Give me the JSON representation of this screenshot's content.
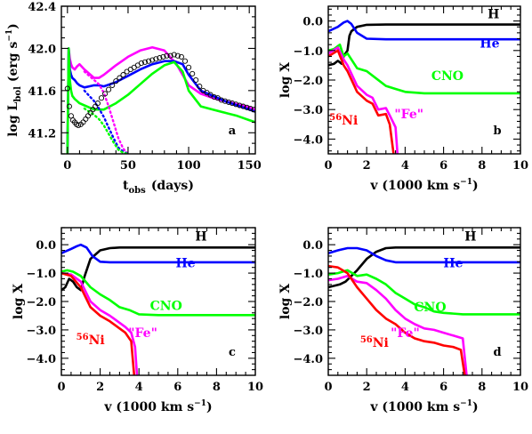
{
  "chart_data": [
    {
      "id": "a",
      "type": "line",
      "panel_label": "a",
      "xlabel": "t_obs (days)",
      "xlabel_main": "t",
      "xlabel_sub": "obs",
      "xlabel_rest": "(days)",
      "ylabel": "log L_bol (erg s⁻¹)",
      "ylabel_main": "log L",
      "ylabel_sub": "bol",
      "ylabel_rest": "(erg s",
      "ylabel_sup": "−1",
      "ylabel_close": ")",
      "xlim": [
        -5,
        155
      ],
      "ylim": [
        41.0,
        42.4
      ],
      "xticks": [
        "0",
        "50",
        "100",
        "150"
      ],
      "yticks": [
        "41.2",
        "41.6",
        "42.0",
        "42.4"
      ],
      "series": [
        {
          "color": "#ff00ff",
          "style": "solid",
          "x": [
            0,
            1,
            2,
            3,
            4,
            6,
            8,
            10,
            14,
            18,
            22,
            26,
            30,
            40,
            50,
            60,
            70,
            80,
            90,
            100,
            110,
            120,
            130,
            140,
            150,
            155
          ],
          "y": [
            41.0,
            42.0,
            41.9,
            41.85,
            41.82,
            41.8,
            41.83,
            41.85,
            41.8,
            41.76,
            41.72,
            41.72,
            41.75,
            41.84,
            41.92,
            41.98,
            42.01,
            41.98,
            41.85,
            41.65,
            41.57,
            41.53,
            41.5,
            41.47,
            41.44,
            41.42
          ]
        },
        {
          "color": "#0000ff",
          "style": "solid",
          "x": [
            0,
            1,
            2,
            3,
            4,
            6,
            8,
            10,
            14,
            18,
            22,
            26,
            30,
            40,
            50,
            60,
            70,
            80,
            88,
            95,
            100,
            110,
            120,
            130,
            140,
            150,
            155
          ],
          "y": [
            41.0,
            42.0,
            41.8,
            41.75,
            41.72,
            41.7,
            41.67,
            41.65,
            41.63,
            41.64,
            41.65,
            41.65,
            41.64,
            41.68,
            41.74,
            41.8,
            41.85,
            41.88,
            41.88,
            41.85,
            41.75,
            41.6,
            41.55,
            41.5,
            41.46,
            41.42,
            41.4
          ]
        },
        {
          "color": "#00ff00",
          "style": "solid",
          "x": [
            0,
            1,
            2,
            3,
            4,
            6,
            8,
            10,
            14,
            18,
            22,
            26,
            30,
            40,
            50,
            60,
            70,
            80,
            88,
            95,
            100,
            110,
            120,
            130,
            140,
            150,
            155
          ],
          "y": [
            41.0,
            42.0,
            41.7,
            41.6,
            41.55,
            41.52,
            41.5,
            41.48,
            41.46,
            41.44,
            41.42,
            41.42,
            41.42,
            41.48,
            41.56,
            41.66,
            41.76,
            41.84,
            41.87,
            41.78,
            41.6,
            41.45,
            41.42,
            41.39,
            41.36,
            41.32,
            41.3
          ]
        },
        {
          "color": "#ff00ff",
          "style": "dotted",
          "x": [
            14,
            18,
            22,
            26,
            30,
            34,
            38,
            42,
            46,
            50
          ],
          "y": [
            41.78,
            41.74,
            41.7,
            41.66,
            41.58,
            41.45,
            41.3,
            41.15,
            41.05,
            41.0
          ]
        },
        {
          "color": "#0000ff",
          "style": "dotted",
          "x": [
            14,
            18,
            22,
            26,
            30,
            34,
            38,
            42,
            46,
            50
          ],
          "y": [
            41.6,
            41.55,
            41.5,
            41.43,
            41.35,
            41.25,
            41.15,
            41.06,
            41.02,
            41.0
          ]
        },
        {
          "color": "#00ff00",
          "style": "dotted",
          "x": [
            14,
            18,
            22,
            26,
            30,
            34,
            38,
            42,
            46,
            50
          ],
          "y": [
            41.43,
            41.4,
            41.37,
            41.33,
            41.27,
            41.19,
            41.11,
            41.04,
            41.01,
            41.0
          ]
        }
      ],
      "observed_points": {
        "marker": "open-circle",
        "x": [
          0,
          1.5,
          3,
          4.5,
          6,
          7.5,
          9,
          11,
          13,
          15,
          17,
          19,
          21,
          23,
          25,
          28,
          31,
          34,
          37,
          40,
          43,
          46,
          49,
          52,
          55,
          58,
          61,
          64,
          67,
          70,
          73,
          76,
          79,
          82,
          85,
          88,
          91,
          94,
          97,
          100,
          103,
          106,
          109,
          112,
          115,
          118,
          121,
          124,
          127,
          130,
          133,
          136,
          139,
          142,
          145,
          148,
          151,
          154
        ],
        "y": [
          41.62,
          41.45,
          41.36,
          41.32,
          41.3,
          41.28,
          41.27,
          41.28,
          41.3,
          41.33,
          41.36,
          41.39,
          41.42,
          41.45,
          41.48,
          41.53,
          41.57,
          41.61,
          41.65,
          41.69,
          41.72,
          41.75,
          41.78,
          41.8,
          41.82,
          41.84,
          41.86,
          41.87,
          41.88,
          41.89,
          41.9,
          41.91,
          41.92,
          41.93,
          41.93,
          41.94,
          41.93,
          41.92,
          41.88,
          41.82,
          41.76,
          41.7,
          41.64,
          41.6,
          41.58,
          41.56,
          41.54,
          41.53,
          41.51,
          41.5,
          41.49,
          41.48,
          41.47,
          41.46,
          41.45,
          41.44,
          41.43,
          41.42
        ]
      }
    },
    {
      "id": "b",
      "type": "line",
      "panel_label": "b",
      "xlabel": "v (1000 km s⁻¹)",
      "xlabel_main": "v (1000 km s",
      "xlabel_sup": "−1",
      "xlabel_close": ")",
      "ylabel": "log X",
      "xlim": [
        0,
        10
      ],
      "ylim": [
        -4.5,
        0.5
      ],
      "xticks": [
        "0",
        "2",
        "4",
        "6",
        "8",
        "10"
      ],
      "yticks": [
        "0.0",
        "−1.0",
        "−2.0",
        "−3.0",
        "−4.0"
      ],
      "series": [
        {
          "name": "H",
          "color": "#000000",
          "x": [
            0,
            0.3,
            0.5,
            0.7,
            0.8,
            0.9,
            1.0,
            1.1,
            1.2,
            1.5,
            2.0,
            3.0,
            5.0,
            10.0
          ],
          "y": [
            -1.5,
            -1.45,
            -1.35,
            -1.45,
            -1.2,
            -1.1,
            -1.0,
            -0.5,
            -0.35,
            -0.2,
            -0.13,
            -0.12,
            -0.12,
            -0.12
          ]
        },
        {
          "name": "He",
          "color": "#0000ff",
          "x": [
            0,
            0.5,
            0.8,
            1.0,
            1.2,
            1.5,
            2.0,
            3.0,
            5.0,
            10.0
          ],
          "y": [
            -0.35,
            -0.2,
            -0.05,
            0.0,
            -0.1,
            -0.4,
            -0.6,
            -0.62,
            -0.62,
            -0.62
          ]
        },
        {
          "name": "CNO",
          "color": "#00ff00",
          "x": [
            0,
            0.3,
            0.6,
            0.8,
            1.0,
            1.5,
            2.0,
            2.5,
            3.0,
            3.5,
            4.0,
            5.0,
            10.0
          ],
          "y": [
            -1.0,
            -0.95,
            -0.8,
            -1.2,
            -1.1,
            -1.6,
            -1.7,
            -1.95,
            -2.2,
            -2.3,
            -2.4,
            -2.45,
            -2.45
          ]
        },
        {
          "name": "\"Fe\"",
          "color": "#ff00ff",
          "x": [
            0,
            0.5,
            0.8,
            1.0,
            1.5,
            2.0,
            2.3,
            2.6,
            3.0,
            3.2,
            3.5,
            3.6
          ],
          "y": [
            -1.1,
            -0.9,
            -1.3,
            -1.5,
            -2.2,
            -2.5,
            -2.6,
            -3.0,
            -2.95,
            -3.2,
            -3.6,
            -4.5
          ]
        },
        {
          "name": "⁵⁶Ni",
          "color": "#ff0000",
          "x": [
            0,
            0.5,
            0.8,
            1.0,
            1.5,
            2.0,
            2.3,
            2.6,
            3.0,
            3.2,
            3.4
          ],
          "y": [
            -1.2,
            -1.0,
            -1.5,
            -1.7,
            -2.4,
            -2.7,
            -2.8,
            -3.2,
            -3.15,
            -3.5,
            -4.5
          ]
        }
      ],
      "series_labels": [
        {
          "text": "H",
          "color": "#000000",
          "at": [
            8.6,
            0.1
          ]
        },
        {
          "text": "He",
          "color": "#0000ff",
          "at": [
            8.4,
            -0.9
          ]
        },
        {
          "text": "CNO",
          "color": "#00ff00",
          "at": [
            6.2,
            -2.0
          ]
        },
        {
          "text": "\"Fe\"",
          "color": "#ff00ff",
          "at": [
            4.2,
            -3.3
          ]
        },
        {
          "text": "56Ni",
          "color": "#ff0000",
          "at": [
            0.8,
            -3.5
          ]
        }
      ]
    },
    {
      "id": "c",
      "type": "line",
      "panel_label": "c",
      "xlabel": "v (1000 km s⁻¹)",
      "xlabel_main": "v (1000 km s",
      "xlabel_sup": "−1",
      "xlabel_close": ")",
      "ylabel": "log X",
      "xlim": [
        0,
        10
      ],
      "ylim": [
        -4.6,
        0.6
      ],
      "xticks": [
        "0",
        "2",
        "4",
        "6",
        "8",
        "10"
      ],
      "yticks": [
        "0.0",
        "−1.0",
        "−2.0",
        "−3.0",
        "−4.0"
      ],
      "series": [
        {
          "name": "H",
          "color": "#000000",
          "x": [
            0,
            0.2,
            0.4,
            0.6,
            0.8,
            1.0,
            1.2,
            1.5,
            2.0,
            2.5,
            3.0,
            5.0,
            10.0
          ],
          "y": [
            -1.6,
            -1.5,
            -1.2,
            -1.3,
            -1.5,
            -1.6,
            -1.1,
            -0.5,
            -0.2,
            -0.12,
            -0.1,
            -0.1,
            -0.1
          ]
        },
        {
          "name": "He",
          "color": "#0000ff",
          "x": [
            0,
            0.5,
            0.8,
            1.0,
            1.3,
            1.6,
            2.0,
            2.5,
            3.0,
            5.0,
            10.0
          ],
          "y": [
            -0.3,
            -0.15,
            -0.05,
            0.0,
            -0.1,
            -0.4,
            -0.6,
            -0.62,
            -0.62,
            -0.62,
            -0.62
          ]
        },
        {
          "name": "CNO",
          "color": "#00ff00",
          "x": [
            0,
            0.3,
            0.6,
            1.0,
            1.5,
            2.0,
            2.5,
            3.0,
            3.5,
            4.0,
            5.0,
            10.0
          ],
          "y": [
            -0.95,
            -0.9,
            -0.95,
            -1.1,
            -1.5,
            -1.75,
            -1.95,
            -2.2,
            -2.3,
            -2.45,
            -2.48,
            -2.48
          ]
        },
        {
          "name": "\"Fe\"",
          "color": "#ff00ff",
          "x": [
            0,
            0.5,
            1.0,
            1.5,
            2.0,
            2.5,
            3.0,
            3.3,
            3.6,
            3.8,
            3.9
          ],
          "y": [
            -1.0,
            -1.05,
            -1.3,
            -2.0,
            -2.3,
            -2.5,
            -2.75,
            -2.9,
            -3.1,
            -3.6,
            -4.6
          ]
        },
        {
          "name": "⁵⁶Ni",
          "color": "#ff0000",
          "x": [
            0,
            0.5,
            1.0,
            1.5,
            2.0,
            2.5,
            3.0,
            3.3,
            3.6,
            3.75
          ],
          "y": [
            -1.0,
            -1.1,
            -1.5,
            -2.2,
            -2.5,
            -2.7,
            -2.95,
            -3.1,
            -3.4,
            -4.6
          ]
        }
      ],
      "series_labels": [
        {
          "text": "H",
          "color": "#000000",
          "at": [
            7.2,
            0.15
          ]
        },
        {
          "text": "He",
          "color": "#0000ff",
          "at": [
            6.4,
            -0.8
          ]
        },
        {
          "text": "CNO",
          "color": "#00ff00",
          "at": [
            5.4,
            -2.3
          ]
        },
        {
          "text": "\"Fe\"",
          "color": "#ff00ff",
          "at": [
            4.2,
            -3.25
          ]
        },
        {
          "text": "56Ni",
          "color": "#ff0000",
          "at": [
            1.5,
            -3.5
          ]
        }
      ]
    },
    {
      "id": "d",
      "type": "line",
      "panel_label": "d",
      "xlabel": "v (1000 km s⁻¹)",
      "xlabel_main": "v (1000 km s",
      "xlabel_sup": "−1",
      "xlabel_close": ")",
      "ylabel": "log X",
      "xlim": [
        0,
        10
      ],
      "ylim": [
        -4.6,
        0.6
      ],
      "xticks": [
        "0",
        "2",
        "4",
        "6",
        "8",
        "10"
      ],
      "yticks": [
        "0.0",
        "−1.0",
        "−2.0",
        "−3.0",
        "−4.0"
      ],
      "series": [
        {
          "name": "H",
          "color": "#000000",
          "x": [
            0,
            0.3,
            0.6,
            0.9,
            1.2,
            1.5,
            2.0,
            2.5,
            3.0,
            3.5,
            4.0,
            5.0,
            10.0
          ],
          "y": [
            -1.5,
            -1.45,
            -1.4,
            -1.3,
            -1.1,
            -0.9,
            -0.5,
            -0.25,
            -0.12,
            -0.1,
            -0.1,
            -0.1,
            -0.1
          ]
        },
        {
          "name": "He",
          "color": "#0000ff",
          "x": [
            0,
            0.5,
            1.0,
            1.5,
            2.0,
            2.5,
            3.0,
            3.5,
            4.0,
            5.0,
            10.0
          ],
          "y": [
            -0.3,
            -0.2,
            -0.12,
            -0.12,
            -0.2,
            -0.4,
            -0.55,
            -0.62,
            -0.62,
            -0.62,
            -0.62
          ]
        },
        {
          "name": "CNO",
          "color": "#00ff00",
          "x": [
            0,
            0.5,
            1.0,
            1.5,
            2.0,
            2.5,
            3.0,
            3.5,
            4.0,
            4.5,
            5.0,
            5.5,
            6.0,
            7.0,
            10.0
          ],
          "y": [
            -1.05,
            -1.0,
            -0.9,
            -1.1,
            -1.05,
            -1.2,
            -1.4,
            -1.7,
            -1.9,
            -2.1,
            -2.2,
            -2.35,
            -2.4,
            -2.45,
            -2.45
          ]
        },
        {
          "name": "\"Fe\"",
          "color": "#ff00ff",
          "x": [
            0,
            0.5,
            1.0,
            1.5,
            2.0,
            2.5,
            3.0,
            3.5,
            4.0,
            4.5,
            5.0,
            5.5,
            6.0,
            6.5,
            7.0,
            7.2
          ],
          "y": [
            -1.25,
            -1.2,
            -1.1,
            -1.3,
            -1.35,
            -1.6,
            -1.9,
            -2.3,
            -2.6,
            -2.8,
            -2.95,
            -3.0,
            -3.1,
            -3.2,
            -3.3,
            -4.6
          ]
        },
        {
          "name": "⁵⁶Ni",
          "color": "#ff0000",
          "x": [
            0,
            0.5,
            1.0,
            1.5,
            2.0,
            2.5,
            3.0,
            3.5,
            4.0,
            4.5,
            5.0,
            5.5,
            6.0,
            6.5,
            6.9,
            7.1
          ],
          "y": [
            -0.75,
            -0.8,
            -1.0,
            -1.5,
            -1.9,
            -2.3,
            -2.6,
            -2.8,
            -3.1,
            -3.3,
            -3.4,
            -3.45,
            -3.55,
            -3.6,
            -3.7,
            -4.6
          ]
        }
      ],
      "series_labels": [
        {
          "text": "H",
          "color": "#000000",
          "at": [
            7.4,
            0.15
          ]
        },
        {
          "text": "He",
          "color": "#0000ff",
          "at": [
            6.5,
            -0.8
          ]
        },
        {
          "text": "CNO",
          "color": "#00ff00",
          "at": [
            5.3,
            -2.35
          ]
        },
        {
          "text": "\"Fe\"",
          "color": "#ff00ff",
          "at": [
            4.0,
            -3.25
          ]
        },
        {
          "text": "56Ni",
          "color": "#ff0000",
          "at": [
            2.4,
            -3.6
          ]
        }
      ]
    }
  ]
}
